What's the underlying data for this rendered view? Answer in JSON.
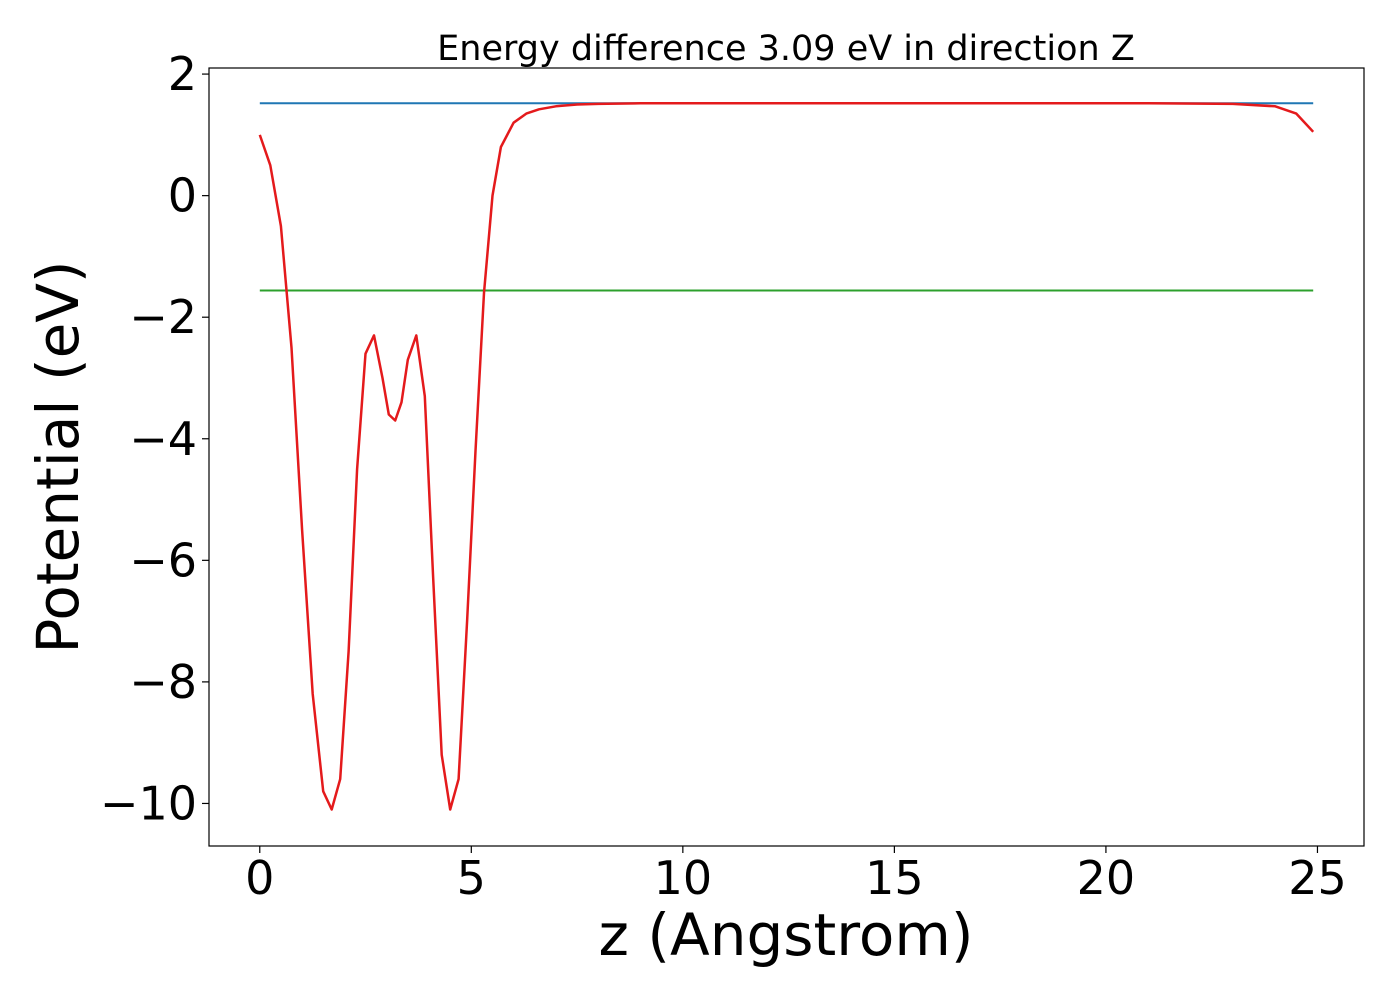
{
  "chart_data": {
    "type": "line",
    "title": "Energy difference 3.09 eV in direction Z",
    "xlabel": "z (Angstrom)",
    "ylabel": "Potential (eV)",
    "xlim": [
      -1.2,
      26.1
    ],
    "ylim": [
      -10.7,
      2.1
    ],
    "x_ticks": [
      0,
      5,
      10,
      15,
      20,
      25
    ],
    "y_ticks": [
      2,
      0,
      -2,
      -4,
      -6,
      -8,
      -10
    ],
    "x_tick_labels": [
      "0",
      "5",
      "10",
      "15",
      "20",
      "25"
    ],
    "y_tick_labels": [
      "2",
      "0",
      "−2",
      "−4",
      "−6",
      "−8",
      "−10"
    ],
    "grid": false,
    "legend": "none",
    "series": [
      {
        "color": "#1f77b4",
        "style": "horizontal-line",
        "x": [
          0,
          24.9
        ],
        "y": [
          1.52,
          1.52
        ]
      },
      {
        "color": "#2ca02c",
        "style": "horizontal-line",
        "x": [
          0,
          24.9
        ],
        "y": [
          -1.56,
          -1.56
        ]
      },
      {
        "color": "#e41a1c",
        "style": "curve",
        "x": [
          0.0,
          0.25,
          0.5,
          0.75,
          1.0,
          1.25,
          1.5,
          1.7,
          1.9,
          2.1,
          2.3,
          2.5,
          2.7,
          2.9,
          3.05,
          3.2,
          3.35,
          3.5,
          3.7,
          3.9,
          4.1,
          4.3,
          4.5,
          4.7,
          4.9,
          5.1,
          5.3,
          5.5,
          5.7,
          6.0,
          6.3,
          6.6,
          7.0,
          7.5,
          8.0,
          9.0,
          10.0,
          12.0,
          15.0,
          18.0,
          21.0,
          23.0,
          24.0,
          24.5,
          24.9
        ],
        "y": [
          1.0,
          0.5,
          -0.5,
          -2.5,
          -5.5,
          -8.2,
          -9.8,
          -10.1,
          -9.6,
          -7.5,
          -4.5,
          -2.6,
          -2.3,
          -3.0,
          -3.6,
          -3.7,
          -3.4,
          -2.7,
          -2.3,
          -3.3,
          -6.3,
          -9.2,
          -10.1,
          -9.6,
          -7.0,
          -4.2,
          -1.6,
          0.0,
          0.8,
          1.2,
          1.35,
          1.42,
          1.47,
          1.5,
          1.51,
          1.52,
          1.52,
          1.52,
          1.52,
          1.52,
          1.52,
          1.51,
          1.47,
          1.35,
          1.05
        ]
      }
    ]
  }
}
